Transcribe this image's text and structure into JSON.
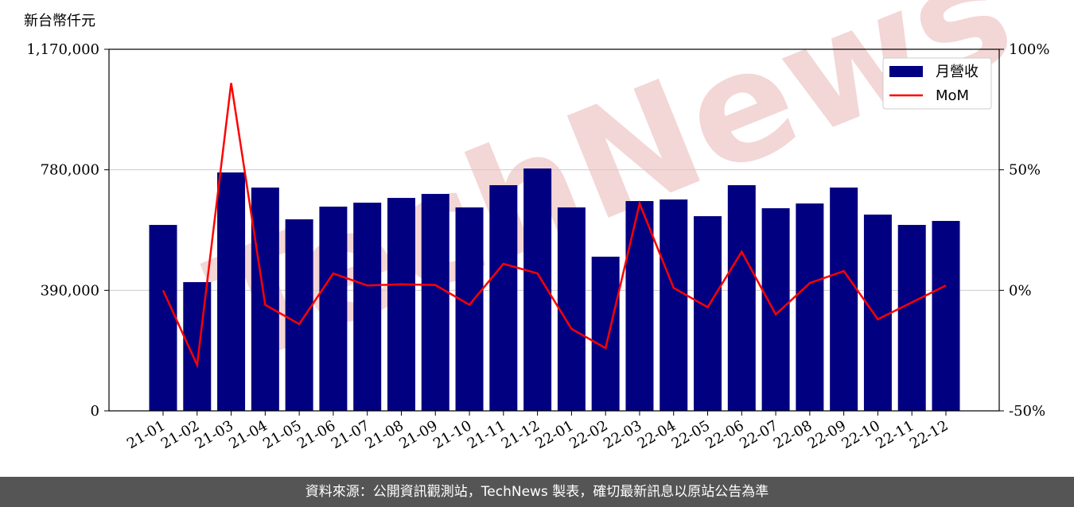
{
  "chart_data": {
    "type": "bar-line",
    "y_label": "新台幣仟元",
    "watermark": "TechNews",
    "footer": "資料來源：公開資訊觀測站，TechNews 製表，確切最新訊息以原站公告為準",
    "categories": [
      "21-01",
      "21-02",
      "21-03",
      "21-04",
      "21-05",
      "21-06",
      "21-07",
      "21-08",
      "21-09",
      "21-10",
      "21-11",
      "21-12",
      "22-01",
      "22-02",
      "22-03",
      "22-04",
      "22-05",
      "22-06",
      "22-07",
      "22-08",
      "22-09",
      "22-10",
      "22-11",
      "22-12"
    ],
    "series": [
      {
        "name": "月營收",
        "type": "bar",
        "color": "#000080",
        "axis": "y",
        "values": [
          601600,
          416500,
          771400,
          722500,
          619700,
          660800,
          673600,
          689000,
          701900,
          658200,
          730200,
          784200,
          658200,
          498800,
          678800,
          683900,
          629900,
          730200,
          655600,
          671000,
          722500,
          635000,
          601600,
          614500
        ]
      },
      {
        "name": "MoM",
        "type": "line",
        "color": "#ff0000",
        "axis": "y2",
        "values": [
          0,
          -31,
          86,
          -6,
          -14,
          7,
          2,
          2.5,
          2.2,
          -6,
          11,
          7,
          -16,
          -24,
          36,
          1,
          -7,
          16,
          -10,
          3,
          8,
          -12,
          -5,
          2
        ]
      }
    ],
    "ylim": [
      0,
      1170000
    ],
    "yticks": [
      0,
      {
        "value": 390000,
        "label": "390,000"
      },
      {
        "value": 780000,
        "label": "780,000"
      },
      {
        "value": 1170000,
        "label": "1,170,000"
      }
    ],
    "y2lim": [
      -50,
      100
    ],
    "y2ticks": [
      {
        "value": -50,
        "label": "-50%"
      },
      {
        "value": 0,
        "label": "0%"
      },
      {
        "value": 50,
        "label": "50%"
      },
      {
        "value": 100,
        "label": "100%"
      }
    ],
    "grid": true,
    "legend": "upper right"
  }
}
